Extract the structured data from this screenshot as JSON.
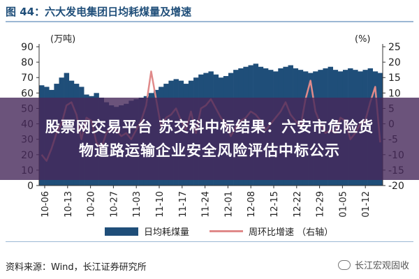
{
  "header": {
    "title": "图 44：六大发电集团日均耗煤量及增速"
  },
  "overlay": {
    "line1": "股票网交易平台 苏交科中标结果：六安市危险货",
    "line2": "物道路运输企业安全风险评估中标公示"
  },
  "legend": {
    "bar_label": "日均耗煤量",
    "line_label": "周环比增速 （右轴）"
  },
  "footer": {
    "source": "资料来源：Wind，长江证券研究所",
    "brand": "长江宏观固收"
  },
  "colors": {
    "bar": "#1f4e79",
    "line": "#e08a8a",
    "axis": "#333333"
  },
  "chart_data": {
    "type": "bar",
    "left_unit": "(万吨)",
    "right_unit": "(%)",
    "ylim_left": [
      0,
      90
    ],
    "ylim_right": [
      -20,
      25
    ],
    "left_ticks": [
      0,
      10,
      20,
      30,
      40,
      50,
      60,
      70,
      80,
      90
    ],
    "right_ticks": [
      -20,
      -15,
      -10,
      -5,
      0,
      5,
      10,
      15,
      20,
      25
    ],
    "x_tick_labels": [
      "10-06",
      "10-13",
      "10-20",
      "10-27",
      "11-03",
      "11-10",
      "11-17",
      "11-24",
      "12-01",
      "12-08",
      "12-15",
      "12-22",
      "12-29",
      "01-05",
      "01-12"
    ],
    "series": [
      {
        "name": "日均耗煤量",
        "type": "bar",
        "axis": "left",
        "values": [
          65,
          64,
          62,
          66,
          70,
          73,
          68,
          66,
          64,
          59,
          58,
          60,
          57,
          54,
          52,
          51,
          52,
          53,
          55,
          56,
          57,
          58,
          60,
          62,
          64,
          66,
          68,
          69,
          68,
          66,
          68,
          70,
          72,
          73,
          74,
          72,
          70,
          71,
          73,
          75,
          76,
          77,
          78,
          79,
          77,
          76,
          75,
          74,
          76,
          77,
          78,
          76,
          75,
          74,
          73,
          74,
          75,
          76,
          77,
          75,
          74,
          75,
          76,
          75,
          74,
          75,
          76,
          74,
          73
        ]
      },
      {
        "name": "周环比增速 （右轴）",
        "type": "line",
        "axis": "right",
        "values": [
          -10,
          -12,
          -8,
          -3,
          0,
          6,
          7,
          3,
          -5,
          2,
          1,
          -6,
          -8,
          -3,
          -1,
          -2,
          -4,
          -3,
          -5,
          -2,
          1,
          6,
          17,
          8,
          -1,
          2,
          3,
          5,
          1,
          -2,
          4,
          -3,
          5,
          6,
          8,
          5,
          2,
          0,
          -4,
          -1,
          1,
          2,
          4,
          3,
          1,
          -2,
          0,
          2,
          4,
          7,
          3,
          1,
          -1,
          8,
          14,
          4,
          0,
          -3,
          -2,
          -3,
          2,
          1,
          -5,
          -3,
          0,
          1,
          7,
          12,
          -6
        ]
      }
    ]
  }
}
